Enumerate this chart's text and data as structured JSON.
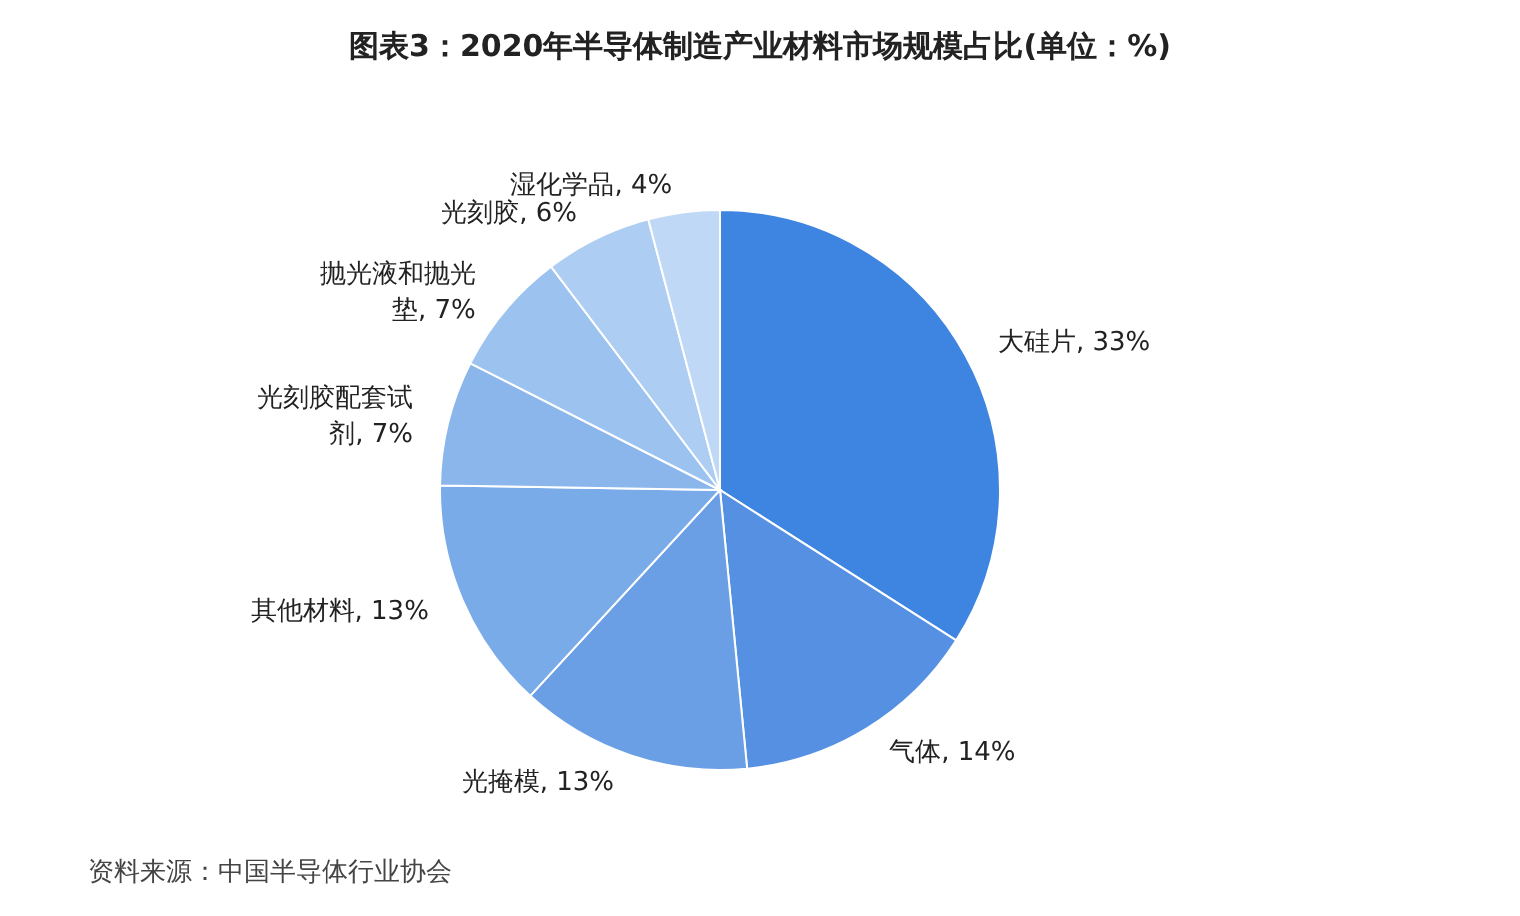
{
  "chart_data": {
    "type": "pie",
    "title": "图表3：2020年半导体制造产业材料市场规模占比(单位：%)",
    "categories": [
      "大硅片",
      "气体",
      "光掩模",
      "其他材料",
      "光刻胶配套试剂",
      "抛光液和抛光垫",
      "光刻胶",
      "湿化学品"
    ],
    "values": [
      33,
      14,
      13,
      13,
      7,
      7,
      6,
      4
    ],
    "value_labels": [
      "33%",
      "14%",
      "13%",
      "13%",
      "7%",
      "7%",
      "6%",
      "4%"
    ],
    "colors": [
      "#3d85e0",
      "#5590e2",
      "#6a9fe6",
      "#7aabe9",
      "#8bb6ec",
      "#9cc2f0",
      "#adcdf3",
      "#bfd8f6"
    ],
    "annotations": [
      "资料来源：中国半导体行业协会"
    ]
  }
}
